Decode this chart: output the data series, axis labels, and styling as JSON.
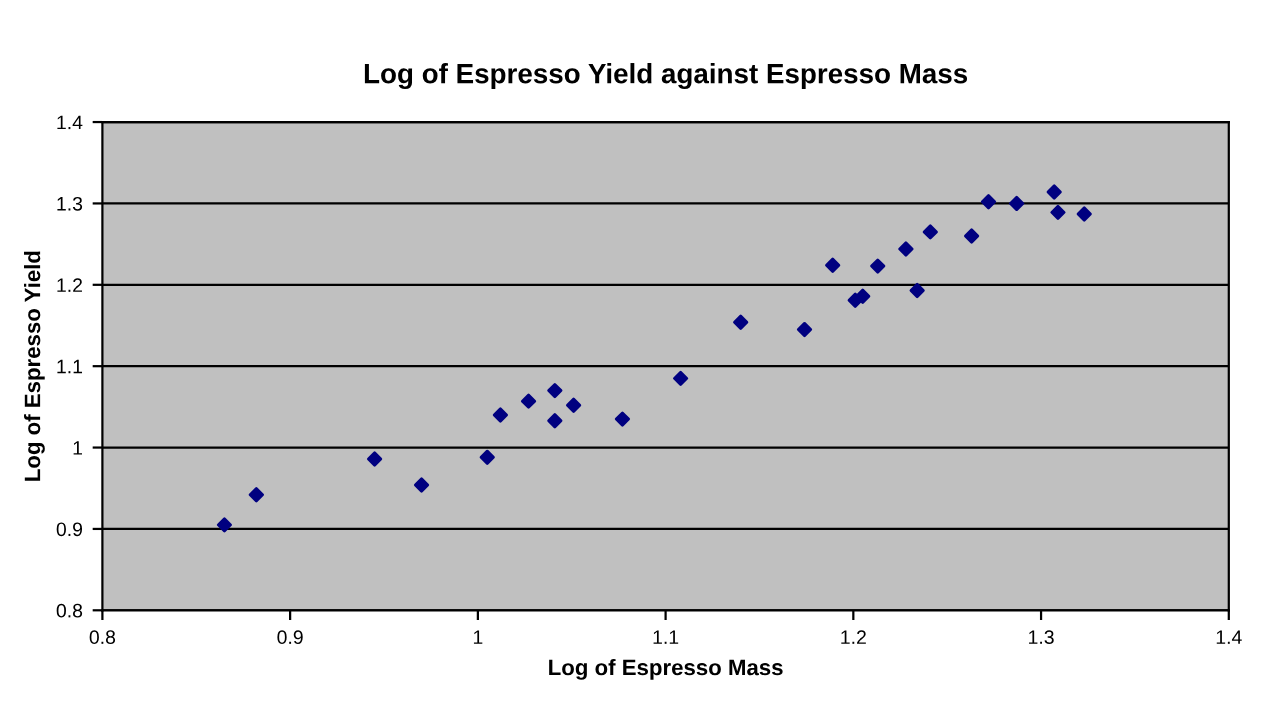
{
  "chart_data": {
    "type": "scatter",
    "title": "Log of Espresso Yield against Espresso Mass",
    "xlabel": "Log of Espresso Mass",
    "ylabel": "Log of Espresso Yield",
    "x": [
      0.865,
      0.882,
      0.945,
      0.97,
      1.005,
      1.012,
      1.027,
      1.041,
      1.041,
      1.051,
      1.077,
      1.108,
      1.14,
      1.174,
      1.189,
      1.201,
      1.205,
      1.213,
      1.228,
      1.234,
      1.241,
      1.263,
      1.272,
      1.287,
      1.307,
      1.309,
      1.323
    ],
    "values": [
      0.905,
      0.942,
      0.986,
      0.954,
      0.988,
      1.04,
      1.057,
      1.07,
      1.033,
      1.052,
      1.035,
      1.085,
      1.154,
      1.145,
      1.224,
      1.181,
      1.186,
      1.223,
      1.244,
      1.193,
      1.265,
      1.26,
      1.302,
      1.3,
      1.314,
      1.289,
      1.287
    ],
    "color": "#000080",
    "marker": "diamond",
    "xlim": [
      0.8,
      1.4
    ],
    "xticks": [
      0.8,
      0.9,
      1,
      1.1,
      1.2,
      1.3,
      1.4
    ],
    "ylim": [
      0.8,
      1.4
    ],
    "yticks": [
      0.8,
      0.9,
      1,
      1.1,
      1.2,
      1.3,
      1.4
    ],
    "grid": "y"
  }
}
